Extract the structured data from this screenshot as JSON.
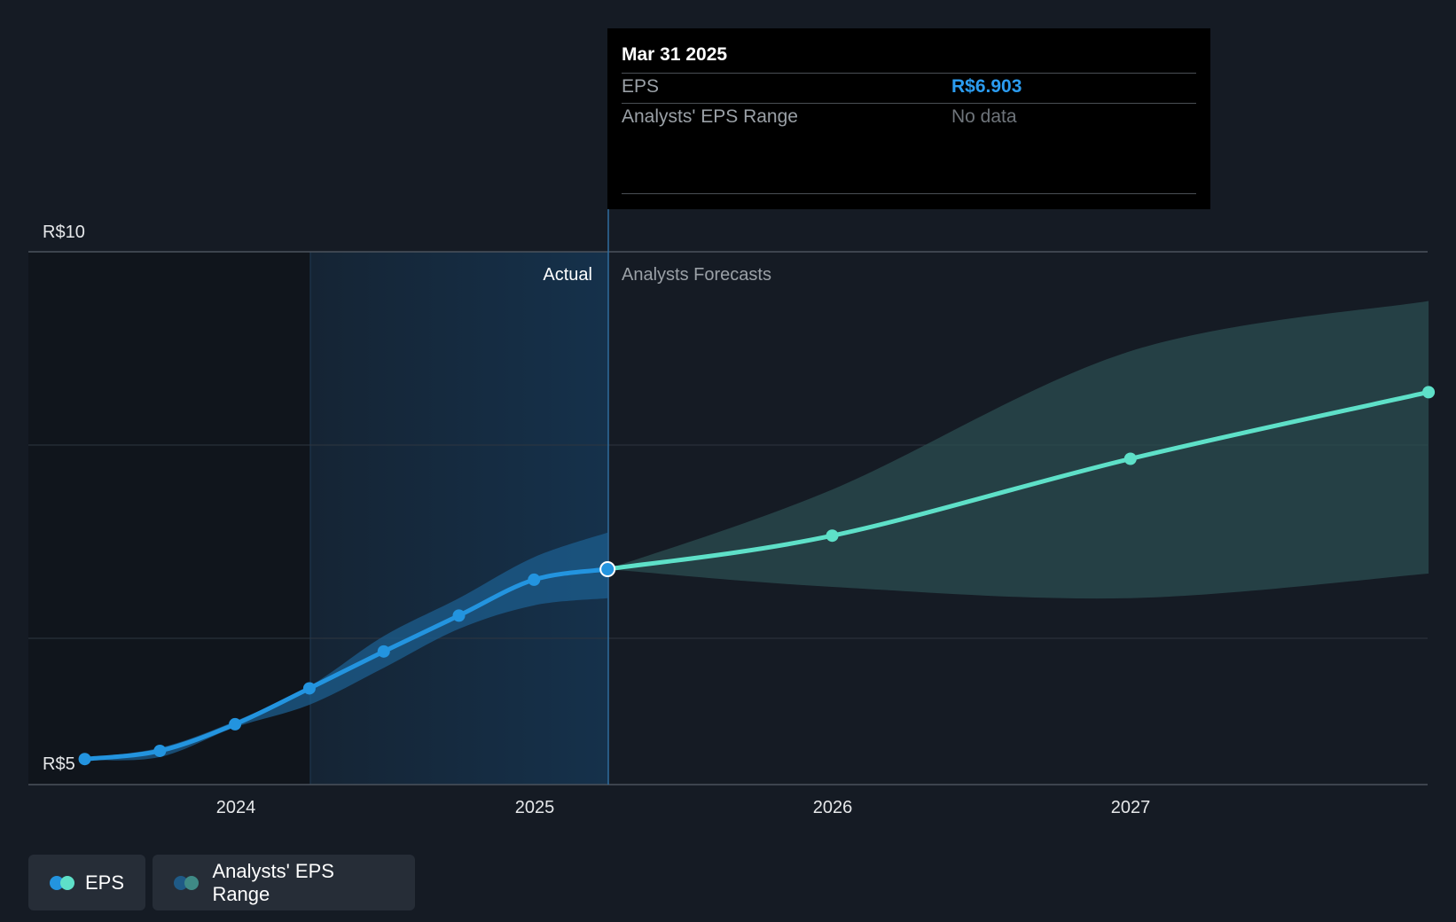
{
  "chart_data": {
    "type": "line",
    "x_ticks": [
      "2024",
      "2025",
      "2026",
      "2027"
    ],
    "y_ticks": [
      "R$5",
      "R$10"
    ],
    "ylim": [
      5,
      10
    ],
    "grid": true,
    "region_labels": {
      "actual": "Actual",
      "forecast": "Analysts Forecasts"
    },
    "series": [
      {
        "name": "EPS",
        "color": "#2394df",
        "points": [
          {
            "x": "2023-06-30",
            "y": 5.05
          },
          {
            "x": "2023-09-30",
            "y": 5.13
          },
          {
            "x": "2023-12-31",
            "y": 5.39
          },
          {
            "x": "2024-03-31",
            "y": 5.74
          },
          {
            "x": "2024-06-30",
            "y": 6.1
          },
          {
            "x": "2024-09-30",
            "y": 6.45
          },
          {
            "x": "2024-12-31",
            "y": 6.8
          },
          {
            "x": "2025-03-31",
            "y": 6.903
          }
        ]
      },
      {
        "name": "EPS",
        "color": "#5ee0c8",
        "points": [
          {
            "x": "2025-03-31",
            "y": 6.903
          },
          {
            "x": "2025-12-31",
            "y": 7.23
          },
          {
            "x": "2026-12-31",
            "y": 7.98
          },
          {
            "x": "2027-12-31",
            "y": 8.63
          }
        ]
      }
    ],
    "ranges": [
      {
        "name": "Analysts' EPS Range",
        "color": "#1c5d8d",
        "points": [
          {
            "x": "2023-06-30",
            "low": 5.04,
            "high": 5.06
          },
          {
            "x": "2023-09-30",
            "low": 5.07,
            "high": 5.16
          },
          {
            "x": "2023-12-31",
            "low": 5.36,
            "high": 5.42
          },
          {
            "x": "2024-03-31",
            "low": 5.58,
            "high": 5.76
          },
          {
            "x": "2024-06-30",
            "low": 5.94,
            "high": 6.25
          },
          {
            "x": "2024-09-30",
            "low": 6.32,
            "high": 6.62
          },
          {
            "x": "2024-12-31",
            "low": 6.55,
            "high": 7.02
          },
          {
            "x": "2025-03-31",
            "low": 6.62,
            "high": 7.26
          }
        ]
      },
      {
        "name": "Analysts' EPS Range",
        "color": "#2b4e50",
        "points": [
          {
            "x": "2025-03-31",
            "low": 6.903,
            "high": 6.903
          },
          {
            "x": "2025-12-31",
            "low": 6.73,
            "high": 7.68
          },
          {
            "x": "2026-12-31",
            "low": 6.62,
            "high": 9.03
          },
          {
            "x": "2027-12-31",
            "low": 6.86,
            "high": 9.52
          }
        ]
      }
    ]
  },
  "tooltip": {
    "date": "Mar 31 2025",
    "eps_label": "EPS",
    "eps_value": "R$6.903",
    "range_label": "Analysts' EPS Range",
    "range_value": "No data"
  },
  "legend": [
    {
      "label": "EPS",
      "colors": [
        "#2394df",
        "#5ee0c8"
      ]
    },
    {
      "label": "Analysts' EPS Range",
      "colors": [
        "#1f5a86",
        "#3f8a86"
      ]
    }
  ]
}
